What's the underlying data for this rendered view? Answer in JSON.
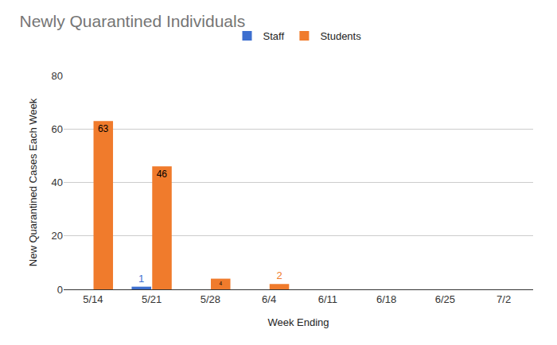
{
  "chart_data": {
    "type": "bar",
    "title": "Newly Quarantined Individuals",
    "x_label": "Week Ending",
    "y_label": "New Quarantined Cases Each Week",
    "categories": [
      "5/14",
      "5/21",
      "5/28",
      "6/4",
      "6/11",
      "6/18",
      "6/25",
      "7/2"
    ],
    "series": [
      {
        "name": "Staff",
        "color": "#3d6fcf",
        "values": [
          0,
          1,
          0,
          0,
          0,
          0,
          0,
          0
        ]
      },
      {
        "name": "Students",
        "color": "#f07b2c",
        "values": [
          63,
          46,
          4,
          2,
          0,
          0,
          0,
          0
        ]
      }
    ],
    "ylim": [
      0,
      80
    ],
    "yticks": [
      0,
      20,
      40,
      60,
      80
    ],
    "grid": true,
    "legend": "top",
    "data_labels": true
  }
}
